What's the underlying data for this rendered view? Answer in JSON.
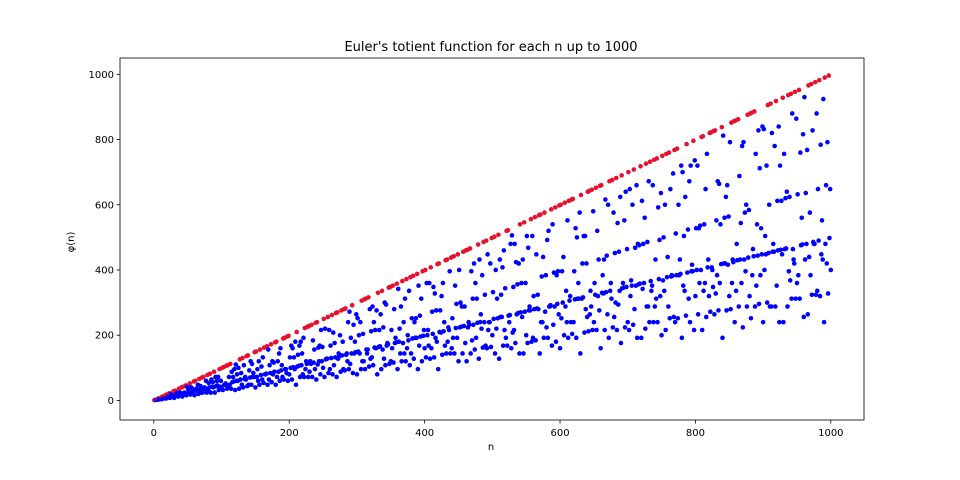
{
  "chart_data": {
    "type": "scatter",
    "title": "Euler's totient function for each n up to 1000",
    "xlabel": "n",
    "ylabel": "φ(n)",
    "xlim": [
      -50,
      1049
    ],
    "ylim": [
      -60,
      1050
    ],
    "xticks": [
      0,
      200,
      400,
      600,
      800,
      1000
    ],
    "yticks": [
      0,
      200,
      400,
      600,
      800,
      1000
    ],
    "grid": false,
    "legend": "none",
    "n_max": 1000,
    "series": [
      {
        "role": "composite",
        "color": "#0000ff",
        "rule": "phi(n) for composite n (and n = 1)"
      },
      {
        "role": "prime",
        "color": "#e8112d",
        "rule": "phi(p) = p - 1 for prime p"
      }
    ]
  }
}
